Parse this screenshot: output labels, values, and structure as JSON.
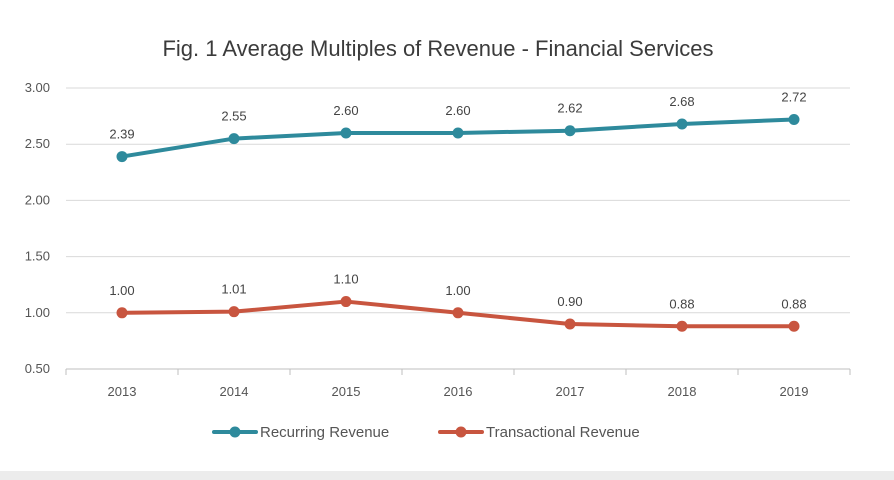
{
  "chart_data": {
    "type": "line",
    "title": "Fig. 1 Average Multiples of Revenue - Financial Services",
    "xlabel": "",
    "ylabel": "",
    "categories": [
      "2013",
      "2014",
      "2015",
      "2016",
      "2017",
      "2018",
      "2019"
    ],
    "ylim": [
      0.5,
      3.0
    ],
    "yticks": [
      "3.00",
      "2.50",
      "2.00",
      "1.50",
      "1.00",
      "0.50"
    ],
    "grid": "horizontal",
    "legend": "bottom",
    "series": [
      {
        "name": "Recurring Revenue",
        "color": "#2e8a9c",
        "values": [
          2.39,
          2.55,
          2.6,
          2.6,
          2.62,
          2.68,
          2.72
        ],
        "labels": [
          "2.39",
          "2.55",
          "2.60",
          "2.60",
          "2.62",
          "2.68",
          "2.72"
        ]
      },
      {
        "name": "Transactional Revenue",
        "color": "#c8553f",
        "values": [
          1.0,
          1.01,
          1.1,
          1.0,
          0.9,
          0.88,
          0.88
        ],
        "labels": [
          "1.00",
          "1.01",
          "1.10",
          "1.00",
          "0.90",
          "0.88",
          "0.88"
        ]
      }
    ]
  }
}
